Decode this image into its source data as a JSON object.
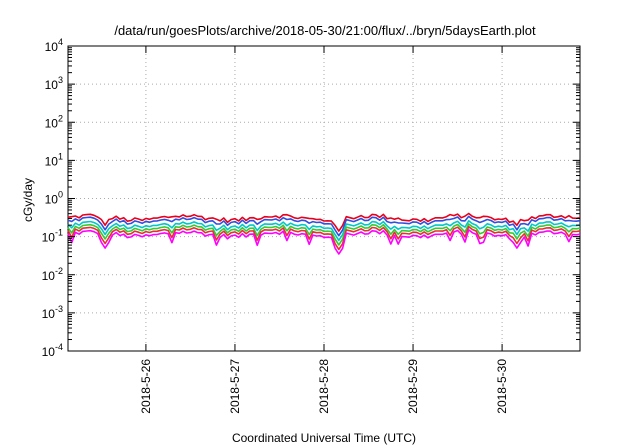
{
  "chart_data": {
    "type": "line",
    "title": "/data/run/goesPlots/archive/2018-05-30/21:00/flux/../bryn/5daysEarth.plot",
    "xlabel": "Coordinated Universal Time (UTC)",
    "ylabel": "cGy/day",
    "y_scale": "log",
    "ylim": [
      0.0001,
      10000
    ],
    "y_ticks": [
      {
        "value": 0.0001,
        "base": "10",
        "exp": "-4"
      },
      {
        "value": 0.001,
        "base": "10",
        "exp": "-3"
      },
      {
        "value": 0.01,
        "base": "10",
        "exp": "-2"
      },
      {
        "value": 0.1,
        "base": "10",
        "exp": "-1"
      },
      {
        "value": 1,
        "base": "10",
        "exp": "0"
      },
      {
        "value": 10,
        "base": "10",
        "exp": "1"
      },
      {
        "value": 100,
        "base": "10",
        "exp": "2"
      },
      {
        "value": 1000,
        "base": "10",
        "exp": "3"
      },
      {
        "value": 10000,
        "base": "10",
        "exp": "4"
      }
    ],
    "xlim": [
      "2018-05-25 03:00",
      "2018-05-30 21:00"
    ],
    "x_ticks": [
      "2018-5-26",
      "2018-5-27",
      "2018-5-28",
      "2018-5-29",
      "2018-5-30"
    ],
    "grid": true,
    "legend": "none",
    "sampling_hours": 1,
    "series": [
      {
        "color": "#e8001c",
        "base": 0.31
      },
      {
        "color": "#2f4fe0",
        "base": 0.26
      },
      {
        "color": "#00c8c8",
        "base": 0.2
      },
      {
        "color": "#33cc33",
        "base": 0.165
      },
      {
        "color": "#e82f2f",
        "base": 0.14
      },
      {
        "color": "#ff00ff",
        "base": 0.115
      }
    ],
    "notable_dips": [
      {
        "x": "2018-05-25 13:00",
        "y": 0.05
      },
      {
        "x": "2018-05-28 04:00",
        "y": 0.035
      },
      {
        "x": "2018-05-30 04:00",
        "y": 0.05
      }
    ]
  }
}
